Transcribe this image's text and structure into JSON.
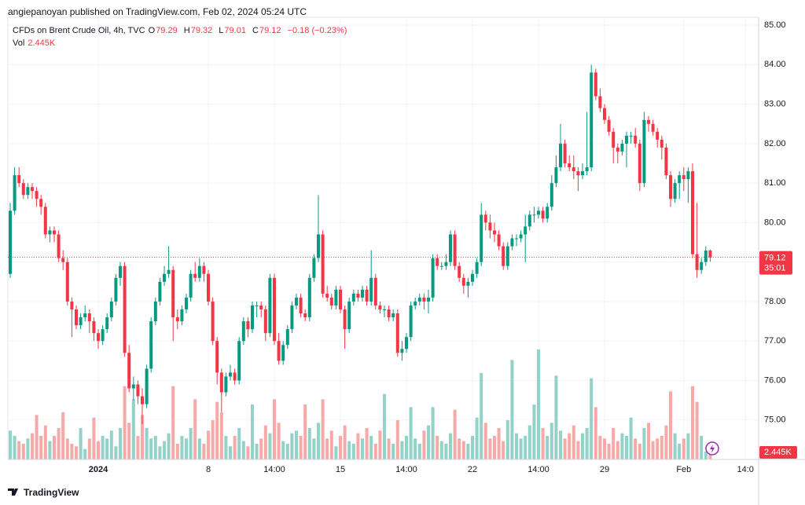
{
  "header": "angiepanoyan published on TradingView.com, Feb 02, 2024 05:24 UTC",
  "footer": "TradingView",
  "chart_data": {
    "type": "candlestick",
    "legend": {
      "symbol": "CFDs on Brent Crude Oil, 4h, TVC",
      "letters": [
        "O",
        "H",
        "L",
        "C"
      ],
      "change": "−0.18 (−0.23%)",
      "vol_label": "Vol",
      "vol_value": "2.445K"
    },
    "countdown": "35:01",
    "up_color": "#089981",
    "down_color": "#f23645",
    "up_volume_color": "#92d2c9",
    "down_volume_color": "#f7a9a7",
    "grid": true,
    "ylim": [
      74.0,
      85.2
    ],
    "yticks": [
      {
        "value": 75,
        "label": "75.00"
      },
      {
        "value": 76,
        "label": "76.00"
      },
      {
        "value": 77,
        "label": "77.00"
      },
      {
        "value": 78,
        "label": "78.00"
      },
      {
        "value": 79,
        "label": "79.00"
      },
      {
        "value": 80,
        "label": "80.00"
      },
      {
        "value": 81,
        "label": "81.00"
      },
      {
        "value": 82,
        "label": "82.00"
      },
      {
        "value": 83,
        "label": "83.00"
      },
      {
        "value": 84,
        "label": "84.00"
      },
      {
        "value": 85,
        "label": "85.00"
      }
    ],
    "categories": [
      null,
      null,
      null,
      null,
      null,
      null,
      null,
      null,
      null,
      null,
      null,
      null,
      null,
      null,
      null,
      null,
      null,
      null,
      null,
      null,
      "2024",
      null,
      null,
      null,
      null,
      null,
      null,
      null,
      null,
      null,
      null,
      null,
      null,
      null,
      null,
      null,
      null,
      null,
      null,
      null,
      null,
      null,
      null,
      null,
      null,
      "8",
      null,
      null,
      null,
      null,
      null,
      null,
      null,
      null,
      null,
      null,
      null,
      null,
      null,
      null,
      "14:00",
      null,
      null,
      null,
      null,
      null,
      null,
      null,
      null,
      null,
      null,
      null,
      null,
      null,
      null,
      "15",
      null,
      null,
      null,
      null,
      null,
      null,
      null,
      null,
      null,
      null,
      null,
      null,
      null,
      null,
      "14:00",
      null,
      null,
      null,
      null,
      null,
      null,
      null,
      null,
      null,
      null,
      null,
      null,
      null,
      null,
      "22",
      null,
      null,
      null,
      null,
      null,
      null,
      null,
      null,
      null,
      null,
      null,
      null,
      null,
      null,
      "14:00",
      null,
      null,
      null,
      null,
      null,
      null,
      null,
      null,
      null,
      null,
      null,
      null,
      null,
      null,
      "29",
      null,
      null,
      null,
      null,
      null,
      null,
      null,
      null,
      null,
      null,
      null,
      null,
      null,
      null,
      null,
      null,
      null,
      "Feb",
      null,
      null,
      null,
      null,
      null,
      null,
      null,
      null,
      null,
      null,
      null,
      null,
      null,
      "14:0"
    ],
    "candles": [
      [
        78.7,
        80.5,
        78.6,
        80.3
      ],
      [
        80.3,
        81.4,
        80.2,
        81.2
      ],
      [
        81.2,
        81.4,
        80.9,
        81.0
      ],
      [
        81.0,
        81.1,
        80.6,
        80.7
      ],
      [
        80.7,
        81.0,
        80.6,
        80.9
      ],
      [
        80.9,
        81.0,
        80.6,
        80.8
      ],
      [
        80.8,
        80.9,
        80.4,
        80.6
      ],
      [
        80.6,
        80.7,
        80.2,
        80.4
      ],
      [
        80.4,
        80.5,
        79.6,
        79.7
      ],
      [
        79.7,
        79.9,
        79.5,
        79.8
      ],
      [
        79.8,
        79.9,
        79.5,
        79.7
      ],
      [
        79.7,
        79.8,
        79.0,
        79.1
      ],
      [
        79.1,
        79.3,
        78.8,
        79.0
      ],
      [
        79.0,
        79.1,
        77.9,
        78.0
      ],
      [
        78.0,
        78.1,
        77.1,
        77.8
      ],
      [
        77.8,
        77.9,
        77.3,
        77.4
      ],
      [
        77.4,
        77.7,
        77.3,
        77.6
      ],
      [
        77.6,
        77.9,
        77.5,
        77.7
      ],
      [
        77.7,
        77.8,
        77.2,
        77.5
      ],
      [
        77.5,
        77.6,
        77.0,
        77.2
      ],
      [
        77.2,
        77.3,
        76.8,
        77.0
      ],
      [
        77.0,
        77.4,
        76.9,
        77.3
      ],
      [
        77.3,
        77.7,
        77.2,
        77.6
      ],
      [
        77.6,
        78.1,
        77.5,
        78.0
      ],
      [
        78.0,
        78.7,
        77.9,
        78.6
      ],
      [
        78.6,
        79.0,
        78.4,
        78.9
      ],
      [
        78.9,
        79.0,
        76.6,
        76.7
      ],
      [
        76.7,
        76.9,
        75.7,
        75.8
      ],
      [
        75.8,
        76.1,
        75.5,
        75.9
      ],
      [
        75.9,
        76.0,
        75.4,
        75.6
      ],
      [
        75.6,
        75.8,
        74.9,
        75.4
      ],
      [
        75.4,
        76.4,
        75.3,
        76.3
      ],
      [
        76.3,
        77.6,
        76.2,
        77.5
      ],
      [
        77.5,
        78.1,
        77.4,
        78.0
      ],
      [
        78.0,
        78.6,
        77.9,
        78.5
      ],
      [
        78.5,
        78.9,
        78.4,
        78.7
      ],
      [
        78.7,
        79.4,
        78.6,
        78.8
      ],
      [
        78.8,
        78.9,
        77.0,
        77.6
      ],
      [
        77.6,
        77.8,
        77.3,
        77.5
      ],
      [
        77.5,
        77.9,
        77.4,
        77.8
      ],
      [
        77.8,
        78.2,
        77.7,
        78.1
      ],
      [
        78.1,
        78.8,
        78.0,
        78.7
      ],
      [
        78.7,
        79.0,
        78.5,
        78.6
      ],
      [
        78.6,
        79.1,
        78.5,
        78.9
      ],
      [
        78.9,
        79.0,
        78.5,
        78.7
      ],
      [
        78.7,
        78.8,
        77.9,
        78.0
      ],
      [
        78.0,
        78.1,
        76.9,
        77.0
      ],
      [
        77.0,
        77.1,
        75.9,
        76.2
      ],
      [
        76.2,
        76.3,
        75.2,
        75.7
      ],
      [
        75.7,
        76.2,
        75.6,
        76.1
      ],
      [
        76.1,
        76.4,
        76.0,
        76.2
      ],
      [
        76.2,
        76.3,
        75.9,
        76.0
      ],
      [
        76.0,
        77.1,
        75.9,
        77.0
      ],
      [
        77.0,
        77.6,
        76.9,
        77.5
      ],
      [
        77.5,
        77.6,
        77.1,
        77.3
      ],
      [
        77.3,
        78.0,
        77.2,
        77.9
      ],
      [
        77.9,
        78.0,
        77.6,
        77.9
      ],
      [
        77.9,
        78.0,
        77.6,
        77.8
      ],
      [
        77.8,
        77.9,
        77.0,
        77.2
      ],
      [
        77.2,
        78.7,
        77.1,
        78.6
      ],
      [
        78.6,
        78.7,
        76.9,
        77.0
      ],
      [
        77.0,
        77.2,
        76.4,
        76.5
      ],
      [
        76.5,
        77.0,
        76.4,
        76.9
      ],
      [
        76.9,
        77.4,
        76.8,
        77.3
      ],
      [
        77.3,
        78.0,
        77.2,
        77.9
      ],
      [
        77.9,
        78.2,
        77.8,
        78.1
      ],
      [
        78.1,
        78.2,
        77.6,
        77.7
      ],
      [
        77.7,
        77.8,
        77.5,
        77.6
      ],
      [
        77.6,
        78.7,
        77.5,
        78.6
      ],
      [
        78.6,
        79.2,
        78.5,
        79.1
      ],
      [
        79.1,
        80.7,
        79.0,
        79.7
      ],
      [
        79.7,
        79.8,
        78.1,
        78.2
      ],
      [
        78.2,
        78.4,
        78.0,
        78.1
      ],
      [
        78.1,
        78.2,
        77.8,
        77.9
      ],
      [
        77.9,
        78.4,
        77.8,
        78.3
      ],
      [
        78.3,
        78.4,
        77.7,
        77.8
      ],
      [
        77.8,
        77.9,
        76.8,
        77.3
      ],
      [
        77.3,
        78.1,
        77.2,
        78.0
      ],
      [
        78.0,
        78.3,
        77.9,
        78.2
      ],
      [
        78.2,
        78.3,
        78.0,
        78.1
      ],
      [
        78.1,
        78.4,
        78.0,
        78.3
      ],
      [
        78.3,
        78.4,
        77.9,
        78.0
      ],
      [
        78.0,
        79.3,
        77.9,
        78.6
      ],
      [
        78.6,
        78.7,
        77.8,
        77.9
      ],
      [
        77.9,
        78.0,
        77.7,
        77.8
      ],
      [
        77.8,
        77.9,
        77.6,
        77.8
      ],
      [
        77.8,
        77.9,
        77.5,
        77.6
      ],
      [
        77.6,
        77.8,
        77.5,
        77.7
      ],
      [
        77.7,
        77.8,
        76.6,
        76.7
      ],
      [
        76.7,
        77.0,
        76.5,
        76.8
      ],
      [
        76.8,
        77.2,
        76.7,
        77.1
      ],
      [
        77.1,
        78.0,
        77.0,
        77.9
      ],
      [
        77.9,
        78.1,
        77.8,
        78.0
      ],
      [
        78.0,
        78.2,
        77.9,
        78.1
      ],
      [
        78.1,
        78.2,
        77.8,
        78.0
      ],
      [
        78.0,
        78.3,
        77.7,
        78.1
      ],
      [
        78.1,
        79.2,
        78.0,
        79.1
      ],
      [
        79.1,
        79.2,
        78.8,
        78.9
      ],
      [
        78.9,
        79.0,
        78.8,
        78.9
      ],
      [
        78.9,
        79.2,
        78.8,
        79.0
      ],
      [
        79.0,
        79.8,
        78.9,
        79.7
      ],
      [
        79.7,
        79.8,
        78.8,
        78.9
      ],
      [
        78.9,
        79.0,
        78.5,
        78.6
      ],
      [
        78.6,
        78.7,
        78.2,
        78.4
      ],
      [
        78.4,
        78.6,
        78.1,
        78.5
      ],
      [
        78.5,
        78.8,
        78.4,
        78.7
      ],
      [
        78.7,
        79.1,
        78.6,
        79.0
      ],
      [
        79.0,
        80.5,
        78.9,
        80.2
      ],
      [
        80.2,
        80.3,
        79.8,
        80.0
      ],
      [
        80.0,
        80.2,
        79.6,
        79.8
      ],
      [
        79.8,
        80.0,
        79.5,
        79.7
      ],
      [
        79.7,
        79.8,
        79.3,
        79.4
      ],
      [
        79.4,
        79.5,
        78.8,
        78.9
      ],
      [
        78.9,
        79.5,
        78.8,
        79.4
      ],
      [
        79.4,
        79.7,
        79.3,
        79.6
      ],
      [
        79.6,
        79.7,
        79.4,
        79.6
      ],
      [
        79.6,
        79.8,
        79.5,
        79.7
      ],
      [
        79.7,
        80.2,
        79.0,
        79.9
      ],
      [
        79.9,
        80.3,
        79.8,
        80.2
      ],
      [
        80.2,
        80.4,
        80.0,
        80.2
      ],
      [
        80.2,
        80.4,
        80.1,
        80.3
      ],
      [
        80.3,
        80.4,
        80.0,
        80.1
      ],
      [
        80.1,
        80.5,
        80.0,
        80.4
      ],
      [
        80.4,
        81.2,
        80.3,
        81.0
      ],
      [
        81.0,
        81.7,
        80.9,
        81.4
      ],
      [
        81.4,
        82.5,
        81.3,
        82.0
      ],
      [
        82.0,
        82.1,
        81.4,
        81.5
      ],
      [
        81.5,
        81.7,
        81.3,
        81.4
      ],
      [
        81.4,
        81.7,
        81.1,
        81.3
      ],
      [
        81.3,
        81.4,
        80.8,
        81.2
      ],
      [
        81.2,
        81.5,
        81.1,
        81.3
      ],
      [
        81.3,
        82.8,
        81.2,
        81.4
      ],
      [
        81.4,
        84.0,
        81.3,
        83.8
      ],
      [
        83.8,
        83.9,
        83.1,
        83.2
      ],
      [
        83.2,
        83.4,
        82.8,
        82.9
      ],
      [
        82.9,
        83.0,
        82.5,
        82.6
      ],
      [
        82.6,
        82.7,
        82.2,
        82.3
      ],
      [
        82.3,
        82.4,
        81.5,
        81.9
      ],
      [
        81.9,
        82.0,
        81.5,
        81.8
      ],
      [
        81.8,
        82.1,
        81.7,
        82.0
      ],
      [
        82.0,
        82.3,
        81.4,
        82.2
      ],
      [
        82.2,
        82.3,
        82.0,
        82.2
      ],
      [
        82.2,
        82.4,
        81.9,
        82.0
      ],
      [
        82.0,
        82.1,
        80.8,
        81.0
      ],
      [
        81.0,
        82.8,
        80.9,
        82.6
      ],
      [
        82.6,
        82.7,
        82.3,
        82.5
      ],
      [
        82.5,
        82.6,
        82.2,
        82.3
      ],
      [
        82.3,
        82.4,
        81.9,
        82.1
      ],
      [
        82.1,
        82.2,
        81.6,
        81.9
      ],
      [
        81.9,
        82.0,
        81.1,
        81.2
      ],
      [
        81.2,
        81.3,
        80.4,
        80.6
      ],
      [
        80.6,
        81.1,
        80.5,
        81.0
      ],
      [
        81.0,
        81.3,
        80.6,
        81.2
      ],
      [
        81.2,
        81.4,
        80.8,
        81.1
      ],
      [
        81.1,
        81.4,
        80.5,
        81.3
      ],
      [
        81.3,
        81.5,
        79.1,
        79.2
      ],
      [
        79.2,
        80.5,
        78.6,
        78.8
      ],
      [
        78.8,
        79.1,
        78.7,
        79.0
      ],
      [
        79.0,
        79.4,
        78.9,
        79.29
      ],
      [
        79.29,
        79.32,
        79.01,
        79.12
      ],
      null,
      null,
      null,
      null,
      null,
      null,
      null,
      null
    ],
    "volume": [
      11000,
      9000,
      7000,
      6000,
      8000,
      10000,
      17000,
      9000,
      13000,
      7000,
      9000,
      12000,
      18000,
      8000,
      6000,
      5000,
      12000,
      4000,
      8000,
      16000,
      7000,
      9000,
      8000,
      11000,
      5000,
      12000,
      28000,
      14000,
      23000,
      9000,
      17000,
      12000,
      8000,
      9000,
      5000,
      7000,
      10000,
      28000,
      6000,
      9000,
      8000,
      12000,
      23000,
      8000,
      6000,
      11000,
      15000,
      22000,
      18000,
      9000,
      5000,
      9000,
      12000,
      7000,
      5000,
      21000,
      6000,
      8000,
      13000,
      10000,
      23000,
      14000,
      7000,
      6000,
      10000,
      11000,
      9000,
      21000,
      12000,
      8000,
      14000,
      23000,
      8000,
      11000,
      5000,
      9000,
      13000,
      7000,
      6000,
      10000,
      8000,
      12000,
      9000,
      6000,
      11000,
      25000,
      8000,
      6000,
      15000,
      7000,
      9000,
      20000,
      8000,
      6000,
      11000,
      13000,
      20000,
      9000,
      7000,
      6000,
      10000,
      19000,
      8000,
      7000,
      6000,
      9000,
      16000,
      33000,
      14000,
      8000,
      9000,
      12000,
      7000,
      15000,
      38000,
      10000,
      8000,
      9000,
      13000,
      21000,
      42000,
      12000,
      9000,
      14000,
      32000,
      11000,
      8000,
      10000,
      13000,
      7000,
      10000,
      12000,
      31000,
      20000,
      9000,
      8000,
      6000,
      12000,
      7000,
      10000,
      9000,
      16000,
      8000,
      6000,
      12000,
      14000,
      7000,
      8000,
      9000,
      13000,
      26000,
      10000,
      6000,
      8000,
      10000,
      28000,
      22000,
      9000,
      3000,
      2445,
      null,
      null,
      null,
      null,
      null,
      null,
      null,
      null
    ]
  }
}
